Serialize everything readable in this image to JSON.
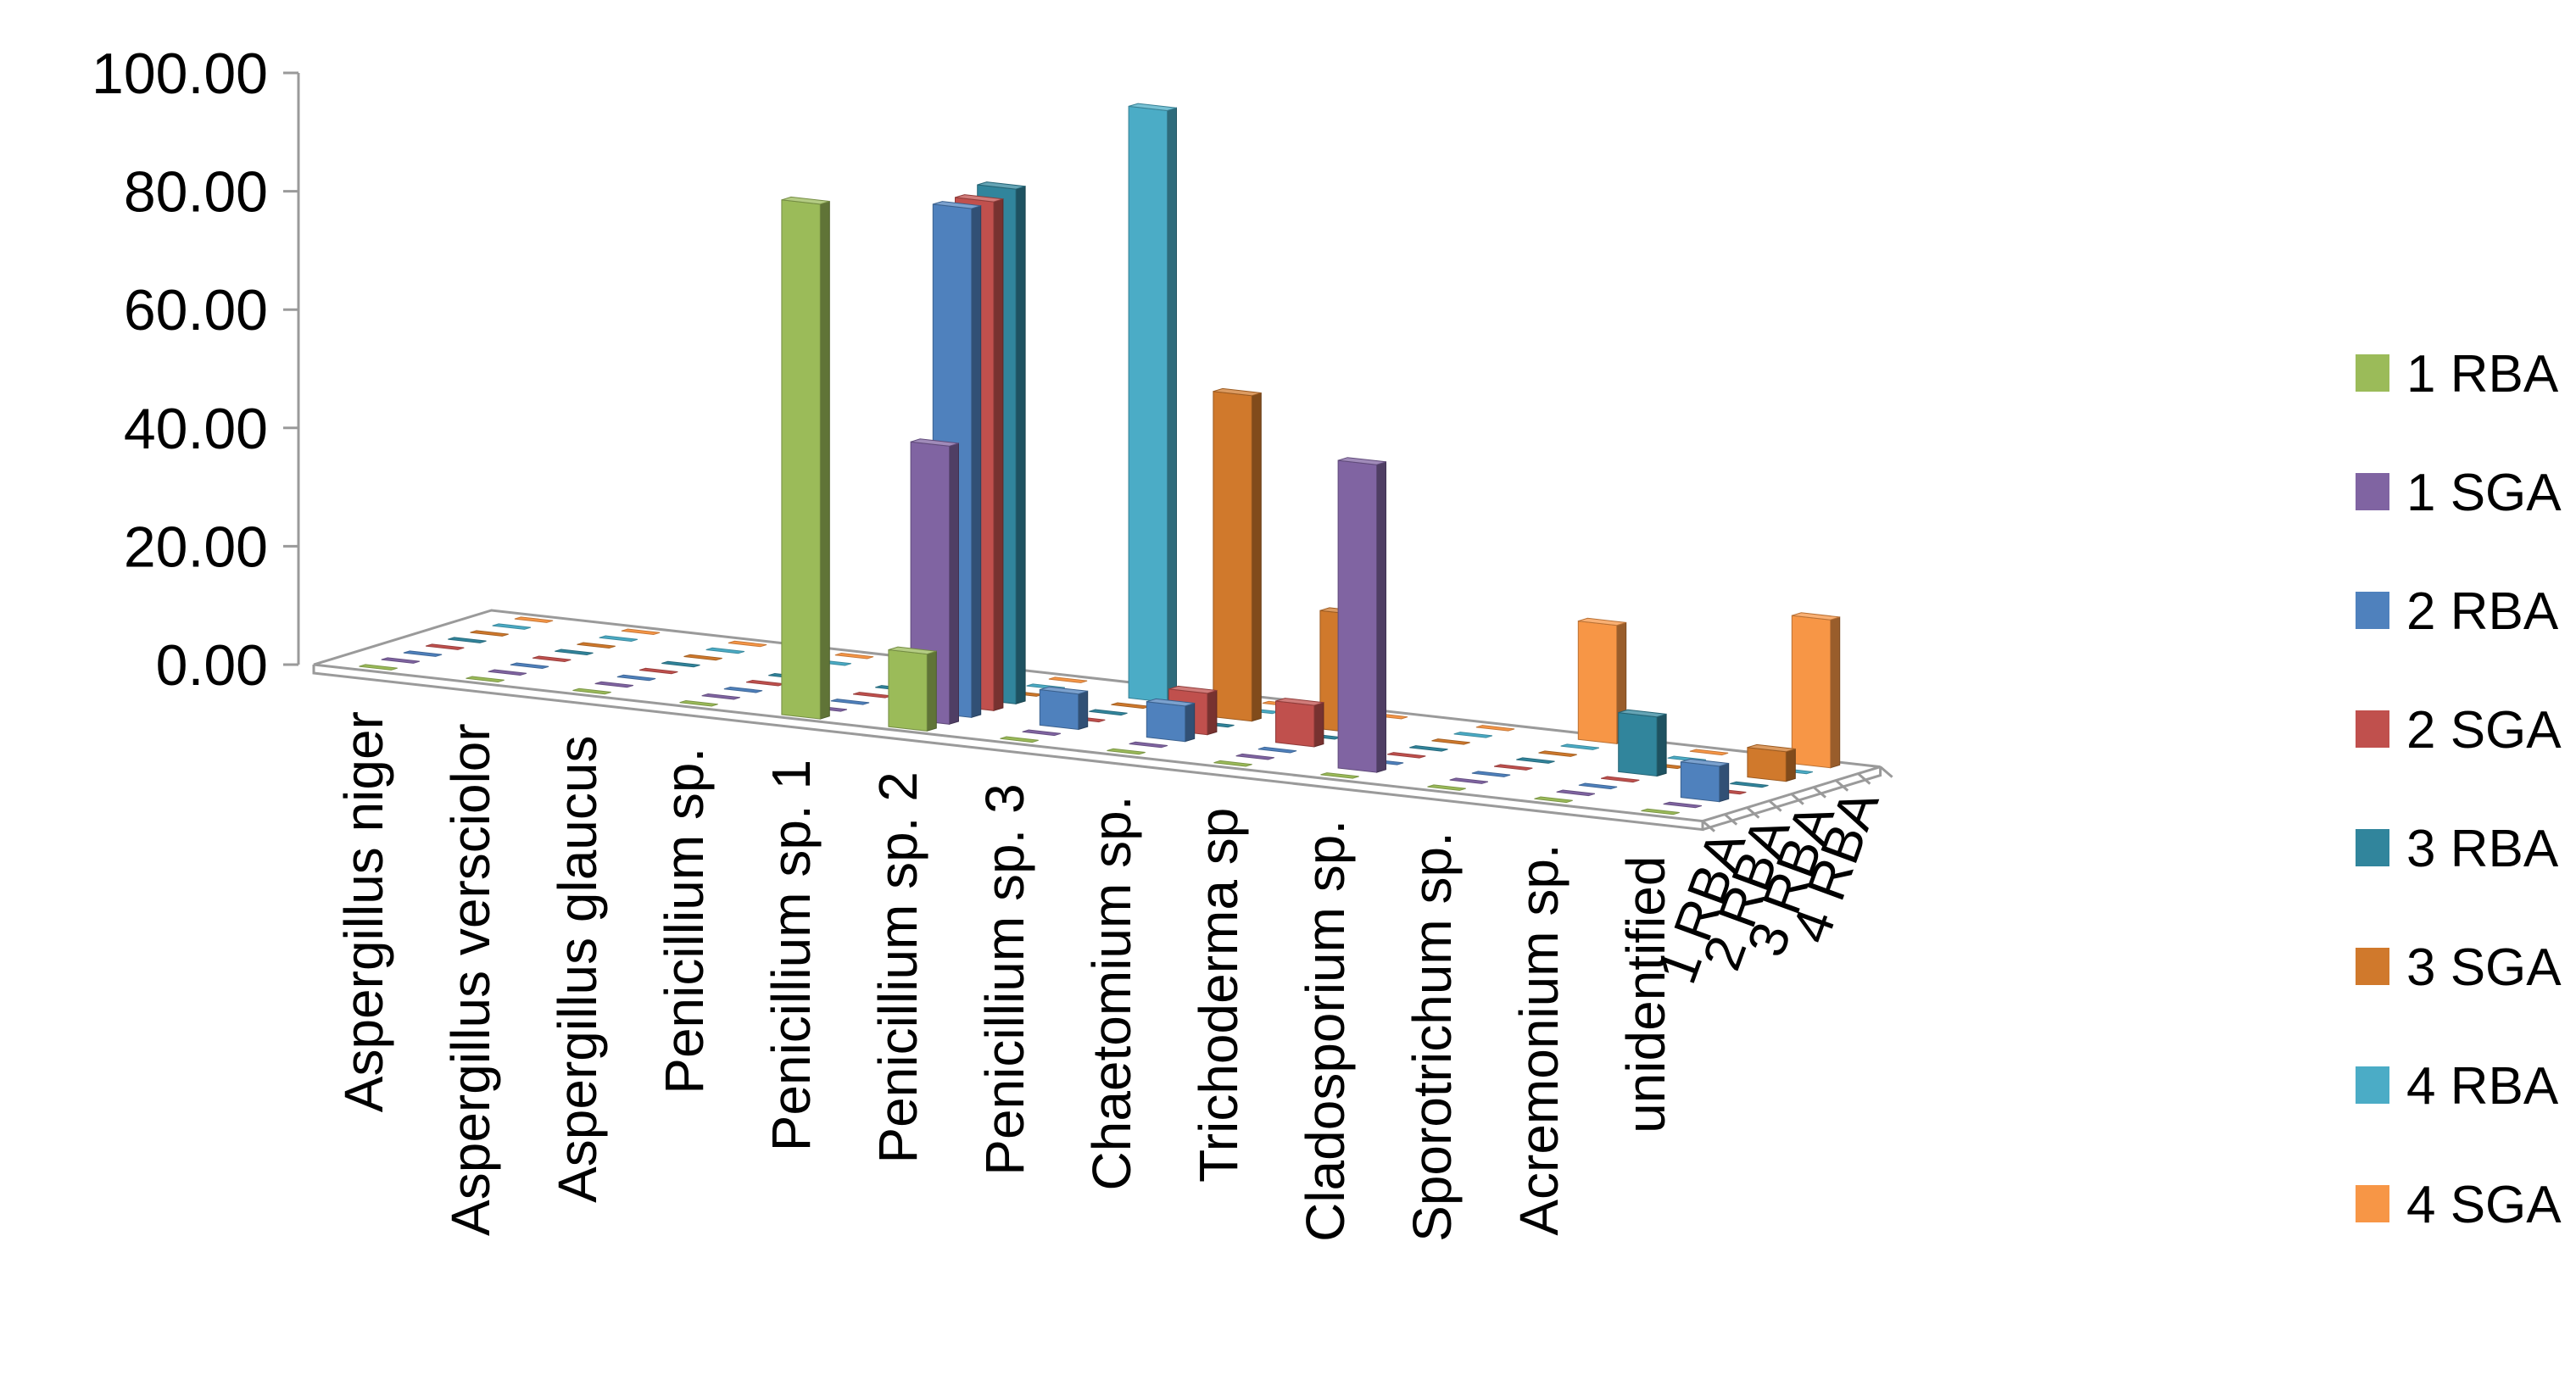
{
  "chart_data": {
    "type": "bar",
    "subtype": "3d-column",
    "title": "",
    "xlabel": "",
    "ylabel": "",
    "ylim": [
      0,
      100
    ],
    "y_ticks": [
      "0.00",
      "20.00",
      "40.00",
      "60.00",
      "80.00",
      "100.00"
    ],
    "categories": [
      "Aspergillus niger",
      "Aspergillus versciolor",
      "Aspergillus glaucus",
      "Penicillium sp.",
      "Penicillium sp. 1",
      "Penicillium sp. 2",
      "Penicillium sp. 3",
      "Chaetomium sp.",
      "Trichoderma sp",
      "Cladosporium sp.",
      "Sporotrichum sp.",
      "Acremonium sp.",
      "unidentified"
    ],
    "depth_labels": [
      "1 RBA",
      "2 RBA",
      "3 RBA",
      "4 RBA"
    ],
    "legend_position": "right",
    "series": [
      {
        "name": "1 RBA",
        "color": "#9BBB59",
        "values": [
          0,
          0,
          0,
          0,
          87,
          13,
          0,
          0,
          0,
          0,
          0,
          0,
          0
        ]
      },
      {
        "name": "1 SGA",
        "color": "#8064A2",
        "values": [
          0,
          0,
          0,
          0,
          0,
          47,
          0,
          0,
          0,
          52,
          0,
          0,
          0
        ]
      },
      {
        "name": "2 RBA",
        "color": "#4F81BD",
        "values": [
          0,
          0,
          0,
          0,
          0,
          86,
          6,
          6,
          0,
          0,
          0,
          0,
          6
        ]
      },
      {
        "name": "2 SGA",
        "color": "#C0504D",
        "values": [
          0,
          0,
          0,
          0,
          0,
          86,
          0,
          7,
          7,
          0,
          0,
          0,
          0
        ]
      },
      {
        "name": "3 RBA",
        "color": "#31859C",
        "values": [
          0,
          0,
          0,
          0,
          0,
          87,
          0,
          0,
          0,
          0,
          0,
          10,
          0
        ]
      },
      {
        "name": "3 SGA",
        "color": "#D0792C",
        "values": [
          0,
          0,
          0,
          0,
          0,
          0,
          0,
          55,
          20,
          0,
          0,
          0,
          5
        ]
      },
      {
        "name": "4 RBA",
        "color": "#4BACC6",
        "values": [
          0,
          0,
          0,
          0,
          0,
          0,
          100,
          0,
          0,
          0,
          0,
          0,
          0
        ]
      },
      {
        "name": "4 SGA",
        "color": "#F79646",
        "values": [
          0,
          0,
          0,
          0,
          0,
          0,
          0,
          0,
          0,
          0,
          20,
          0,
          25
        ]
      }
    ]
  }
}
